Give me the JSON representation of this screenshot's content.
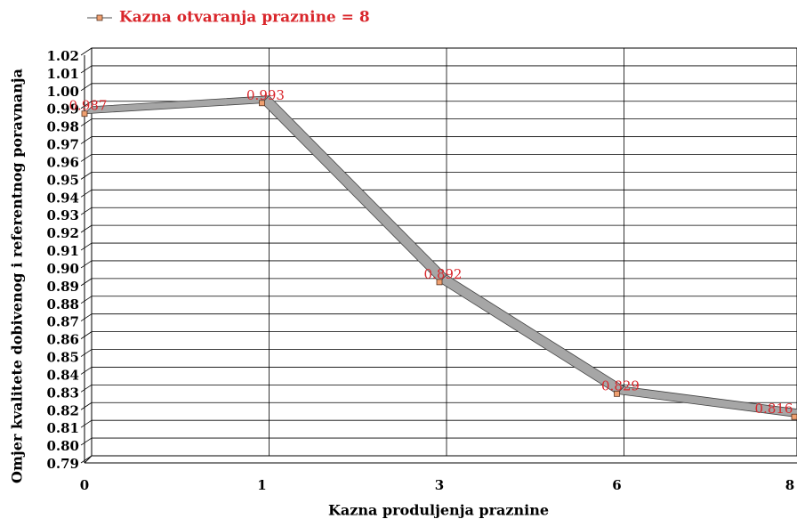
{
  "chart_data": {
    "type": "line",
    "x_label": "Kazna produljenja praznine",
    "y_label": "Omjer kvalitete dobivenog i referentnog poravnanja",
    "categories": [
      "0",
      "1",
      "3",
      "6",
      "8"
    ],
    "series": [
      {
        "name": "Kazna otvaranja praznine = 8",
        "color": "#f0a070",
        "values": [
          0.987,
          0.993,
          0.892,
          0.829,
          0.816
        ]
      }
    ],
    "ylim": [
      0.79,
      1.02
    ],
    "yticks": [
      0.79,
      {
        "value": 0.8,
        "label": "0.80"
      },
      0.81,
      0.82,
      0.83,
      0.84,
      0.85,
      0.86,
      0.87,
      0.88,
      0.89,
      {
        "value": 0.9,
        "label": "0.90"
      },
      0.91,
      0.92,
      0.93,
      0.94,
      0.95,
      0.96,
      0.97,
      0.98,
      0.99,
      {
        "value": 1.0,
        "label": "1.00"
      },
      1.01,
      1.02
    ],
    "grid": true
  }
}
